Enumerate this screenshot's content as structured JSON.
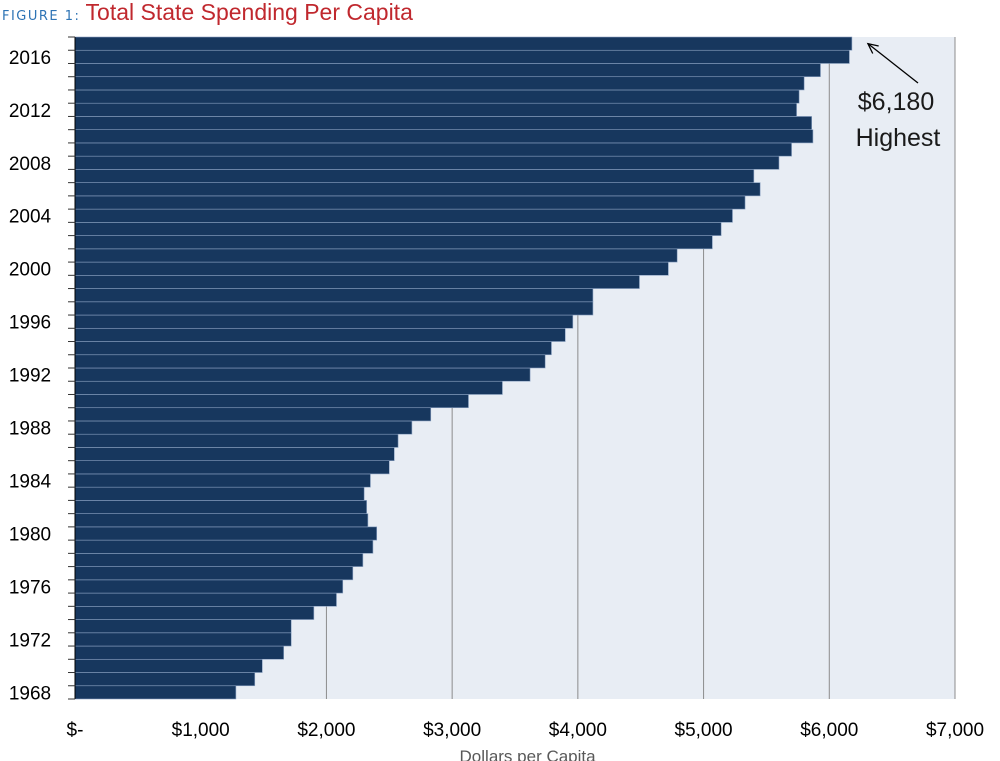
{
  "figure": {
    "label": "FIGURE 1:",
    "title": "Total State Spending Per Capita"
  },
  "chart_data": {
    "type": "bar",
    "orientation": "horizontal",
    "title": "Total State Spending Per Capita",
    "xlabel": "Dollars per Capita",
    "ylabel": "",
    "xlim": [
      0,
      7000
    ],
    "x_tick_values": [
      0,
      1000,
      2000,
      3000,
      4000,
      5000,
      6000,
      7000
    ],
    "x_tick_labels": [
      "$-",
      "$1,000",
      "$2,000",
      "$3,000",
      "$4,000",
      "$5,000",
      "$6,000",
      "$7,000"
    ],
    "y_tick_labels": [
      "2016",
      "2012",
      "2008",
      "2004",
      "2000",
      "1996",
      "1992",
      "1988",
      "1984",
      "1980",
      "1976",
      "1972",
      "1968"
    ],
    "grid": "vertical",
    "bar_color": "#17375e",
    "background_color": "#e8edf4",
    "categories": [
      "1968",
      "1969",
      "1970",
      "1971",
      "1972",
      "1973",
      "1974",
      "1975",
      "1976",
      "1977",
      "1978",
      "1979",
      "1980",
      "1981",
      "1982",
      "1983",
      "1984",
      "1985",
      "1986",
      "1987",
      "1988",
      "1989",
      "1990",
      "1991",
      "1992",
      "1993",
      "1994",
      "1995",
      "1996",
      "1997",
      "1998",
      "1999",
      "2000",
      "2001",
      "2002",
      "2003",
      "2004",
      "2005",
      "2006",
      "2007",
      "2008",
      "2009",
      "2010",
      "2011",
      "2012",
      "2013",
      "2014",
      "2015",
      "2016",
      "2017"
    ],
    "values": [
      1280,
      1430,
      1490,
      1660,
      1720,
      1720,
      1900,
      2080,
      2130,
      2210,
      2290,
      2370,
      2400,
      2330,
      2320,
      2300,
      2350,
      2500,
      2540,
      2570,
      2680,
      2830,
      3130,
      3400,
      3620,
      3740,
      3790,
      3900,
      3960,
      4120,
      4120,
      4490,
      4720,
      4790,
      5070,
      5140,
      5230,
      5330,
      5450,
      5400,
      5600,
      5700,
      5870,
      5860,
      5740,
      5760,
      5800,
      5930,
      6160,
      6180
    ],
    "annotation": {
      "value_label": "$6,180",
      "text": "Highest",
      "category": "2017"
    }
  }
}
